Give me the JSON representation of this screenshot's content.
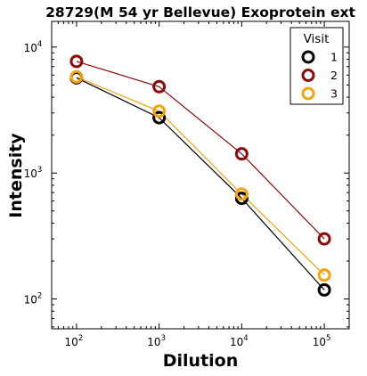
{
  "chart_data": {
    "type": "line",
    "title": "28729(M 54 yr Bellevue) Exoprotein ext",
    "xlabel": "Dilution",
    "ylabel": "Intensity",
    "x_scale": "log",
    "y_scale": "log",
    "xlim": [
      50,
      200000
    ],
    "ylim": [
      58,
      16000
    ],
    "x_ticks": [
      {
        "base": "10",
        "exp": "2",
        "value": 100
      },
      {
        "base": "10",
        "exp": "3",
        "value": 1000
      },
      {
        "base": "10",
        "exp": "4",
        "value": 10000
      },
      {
        "base": "10",
        "exp": "5",
        "value": 100000
      }
    ],
    "y_ticks": [
      {
        "base": "10",
        "exp": "2",
        "value": 100
      },
      {
        "base": "10",
        "exp": "3",
        "value": 1000
      },
      {
        "base": "10",
        "exp": "4",
        "value": 10000
      }
    ],
    "grid": false,
    "legend": {
      "title": "Visit",
      "position": "top-right"
    },
    "x": [
      100,
      1000,
      10000,
      100000
    ],
    "series": [
      {
        "name": "1",
        "color": "#000000",
        "values": [
          5700,
          2750,
          630,
          118
        ]
      },
      {
        "name": "2",
        "color": "#8b0a0a",
        "values": [
          7700,
          4850,
          1420,
          300
        ]
      },
      {
        "name": "3",
        "color": "#f5a30f",
        "values": [
          5800,
          3100,
          680,
          155
        ]
      }
    ]
  }
}
